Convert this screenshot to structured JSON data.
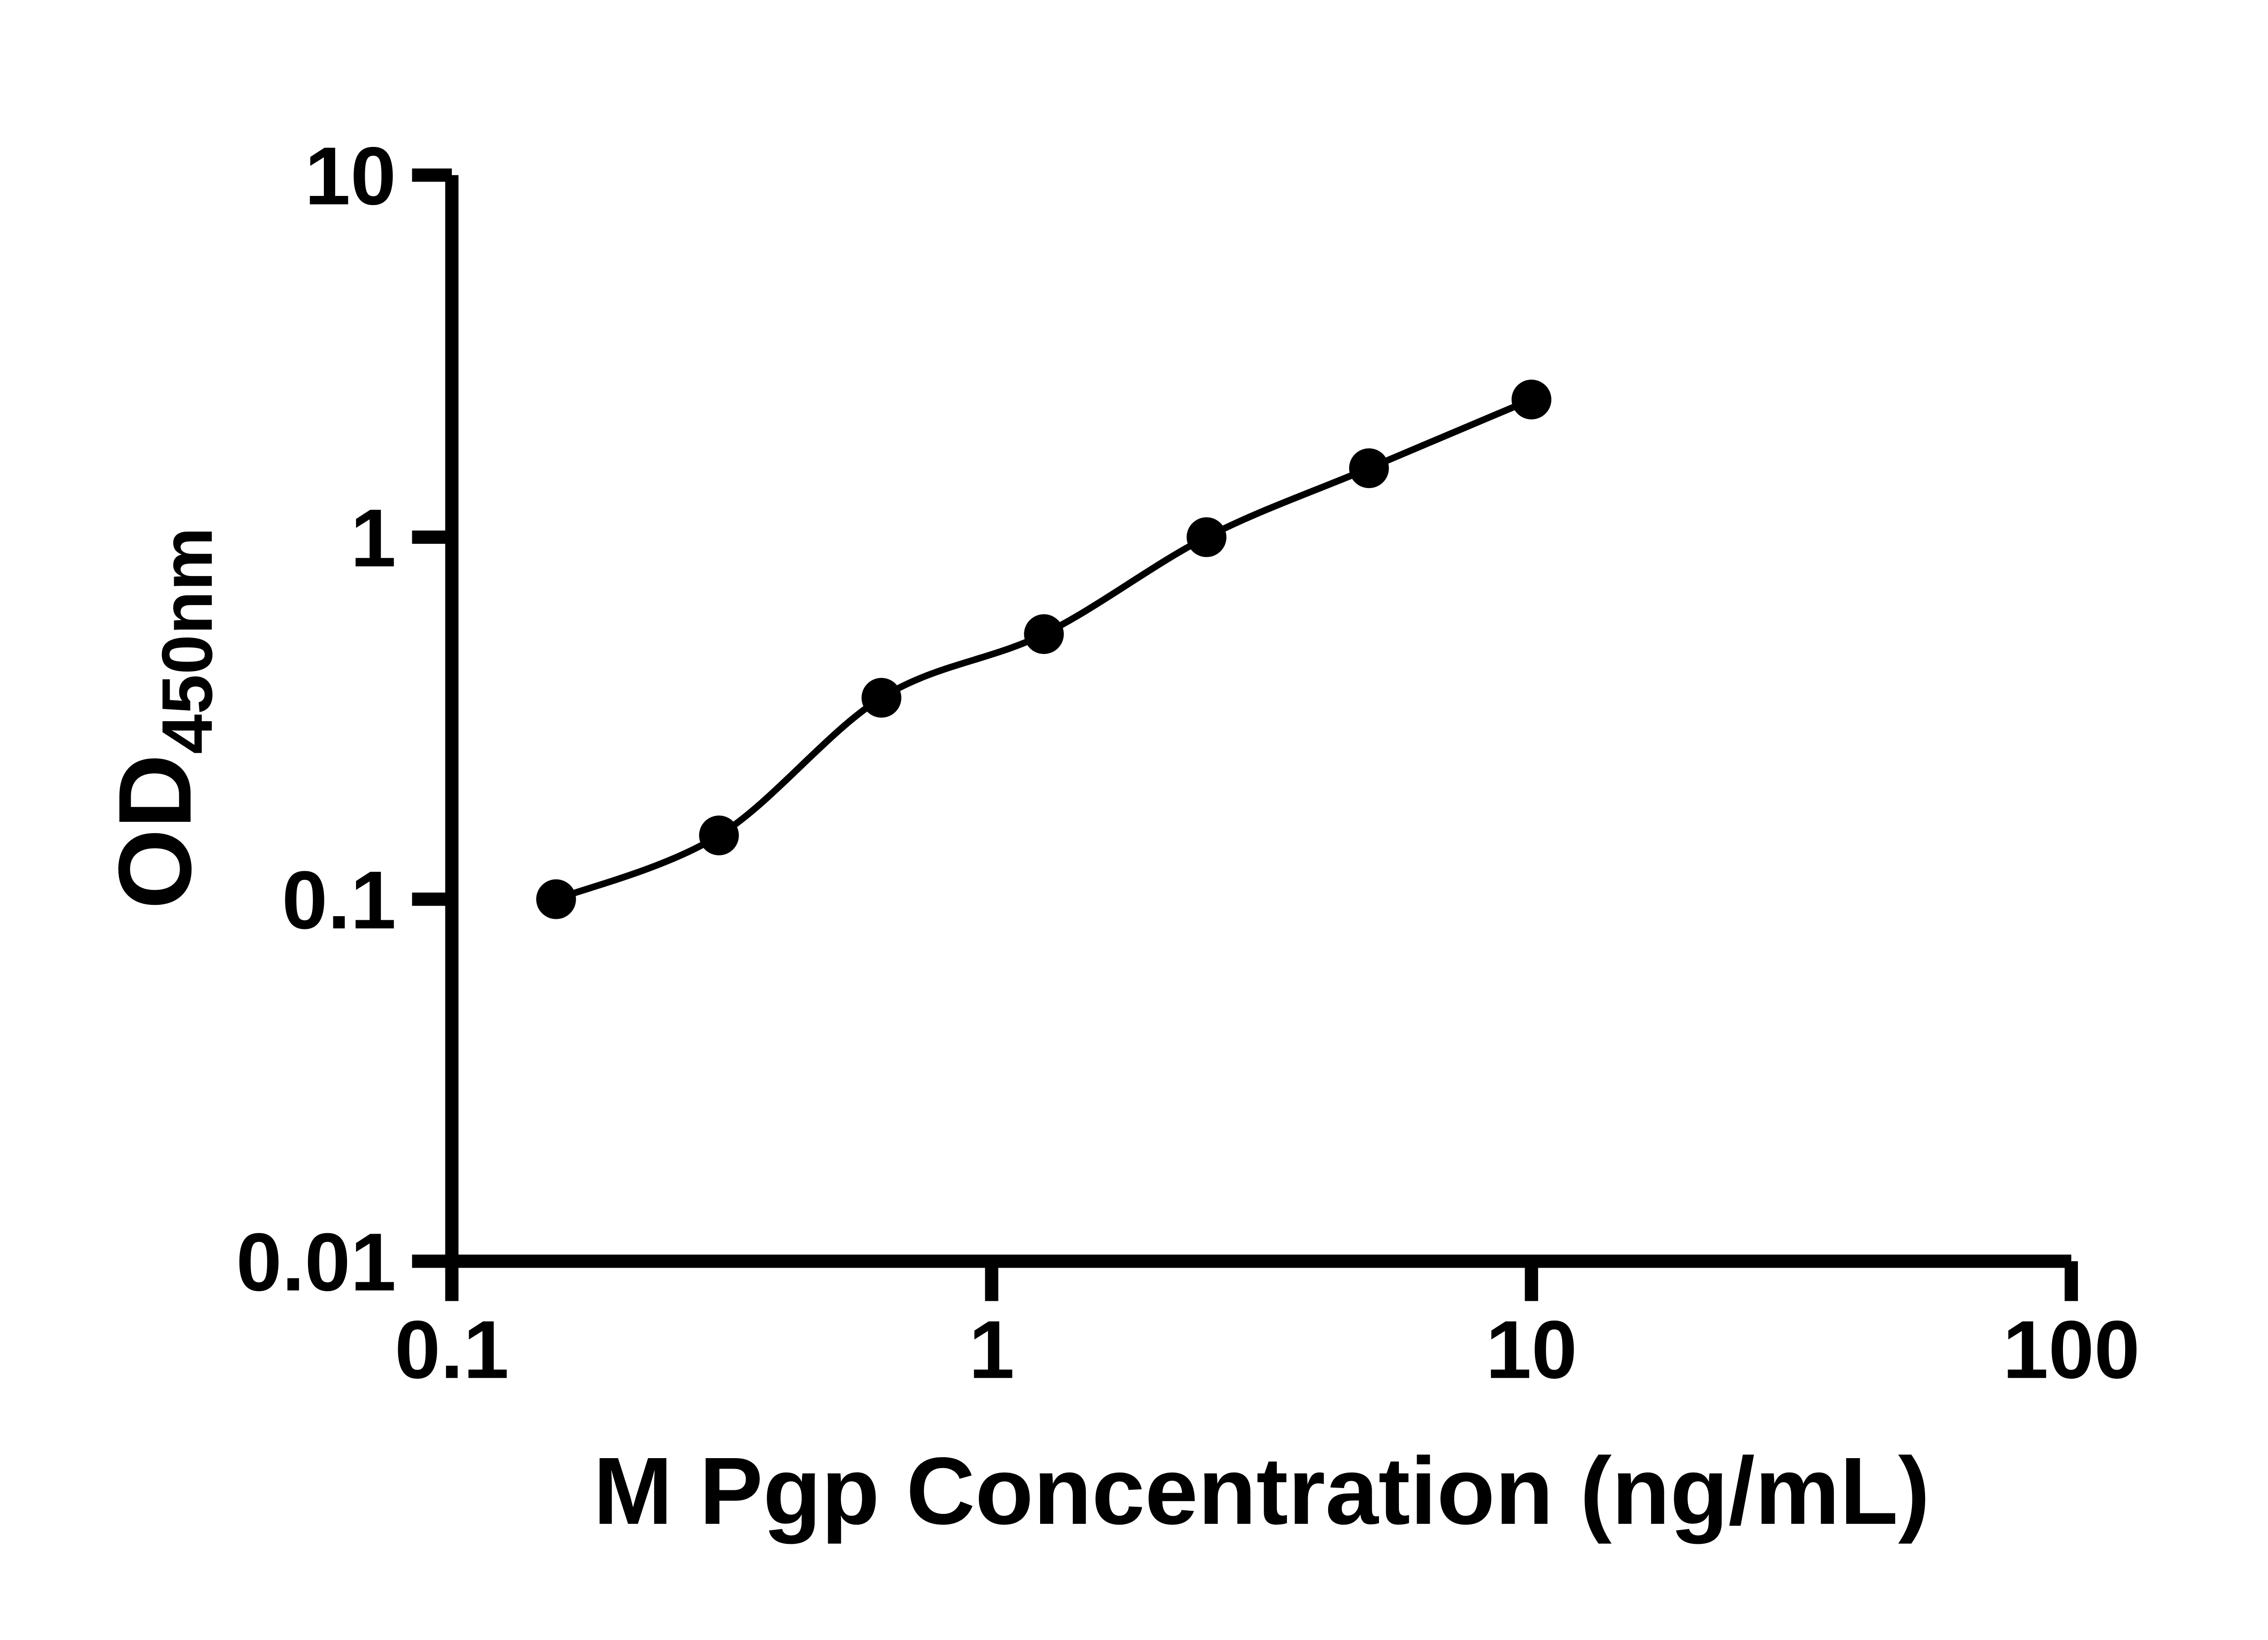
{
  "colors": {
    "background": "#ffffff",
    "foreground": "#000000"
  },
  "chart_data": {
    "type": "scatter",
    "subtype": "standard-curve-with-fit-line",
    "title": "",
    "x": [
      0.156,
      0.3125,
      0.625,
      1.25,
      2.5,
      5,
      10
    ],
    "y": [
      0.1,
      0.15,
      0.36,
      0.54,
      1.0,
      1.55,
      2.4
    ],
    "fit_line": true,
    "xlabel": "M Pgp Concentration (ng/mL)",
    "ylabel": "OD450nm",
    "ylabel_main": "OD",
    "ylabel_sub": "450nm",
    "x_scale": "log",
    "y_scale": "log",
    "xlim": [
      0.1,
      100
    ],
    "ylim": [
      0.01,
      10
    ],
    "x_ticks": [
      0.1,
      1,
      10,
      100
    ],
    "x_tick_labels": [
      "0.1",
      "1",
      "10",
      "100"
    ],
    "y_ticks": [
      10,
      1,
      0.1,
      0.01
    ],
    "y_tick_labels": [
      "10",
      "1",
      "0.1",
      "0.01"
    ],
    "grid": false,
    "legend": "",
    "marker_color": "#000000",
    "line_color": "#000000",
    "axis_color": "#000000"
  }
}
